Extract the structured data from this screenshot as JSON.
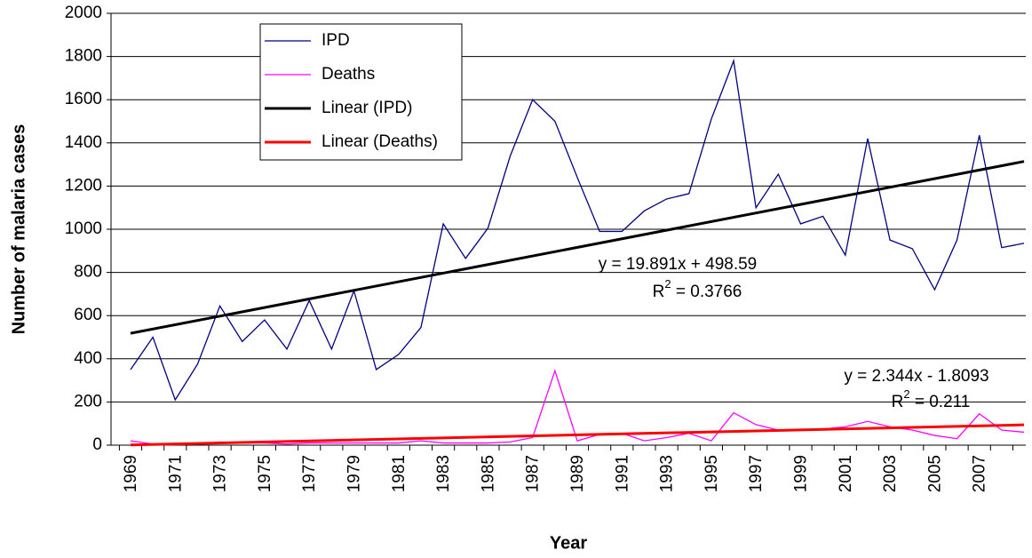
{
  "chart_data": {
    "type": "line",
    "y_axis_title": "Number of malaria cases",
    "x_axis_title": "Year",
    "categories": [
      "1969",
      null,
      "1971",
      null,
      "1973",
      null,
      "1975",
      null,
      "1977",
      null,
      "1979",
      null,
      "1981",
      null,
      "1983",
      null,
      "1985",
      null,
      "1987",
      null,
      "1989",
      null,
      "1991",
      null,
      "1993",
      null,
      "1995",
      null,
      "1997",
      null,
      "1999",
      null,
      "2001",
      null,
      "2003",
      null,
      "2005",
      null,
      "2007",
      null,
      null
    ],
    "series": [
      {
        "name": "IPD",
        "color": "#000080",
        "values": [
          350,
          500,
          210,
          375,
          645,
          480,
          580,
          445,
          670,
          445,
          715,
          350,
          420,
          545,
          1025,
          865,
          1005,
          1340,
          1600,
          1500,
          1240,
          990,
          990,
          1085,
          1140,
          1165,
          1510,
          1780,
          1100,
          1255,
          1025,
          1060,
          880,
          1420,
          950,
          910,
          720,
          950,
          1435,
          915,
          935
        ]
      },
      {
        "name": "Deaths",
        "color": "#ff00ff",
        "values": [
          20,
          5,
          5,
          5,
          15,
          10,
          10,
          5,
          10,
          10,
          10,
          10,
          10,
          20,
          10,
          10,
          10,
          15,
          35,
          345,
          20,
          50,
          55,
          20,
          35,
          55,
          20,
          150,
          95,
          70,
          70,
          75,
          85,
          110,
          85,
          70,
          45,
          30,
          145,
          70,
          60
        ]
      }
    ],
    "trendlines": [
      {
        "name": "Linear (IPD)",
        "color": "#000000",
        "values": [
          518,
          1314
        ],
        "equation": "y = 19.891x + 498.59",
        "r2_parts": [
          "R",
          "2",
          " = 0.3766"
        ]
      },
      {
        "name": "Linear (Deaths)",
        "color": "#ff0000",
        "values": [
          1,
          94
        ],
        "equation": "y = 2.344x - 1.8093",
        "r2_parts": [
          "R",
          "2",
          " = 0.211"
        ]
      }
    ],
    "ylim": [
      0,
      2000
    ],
    "yticks": [
      0,
      200,
      400,
      600,
      800,
      1000,
      1200,
      1400,
      1600,
      1800,
      2000
    ],
    "grid": true
  }
}
